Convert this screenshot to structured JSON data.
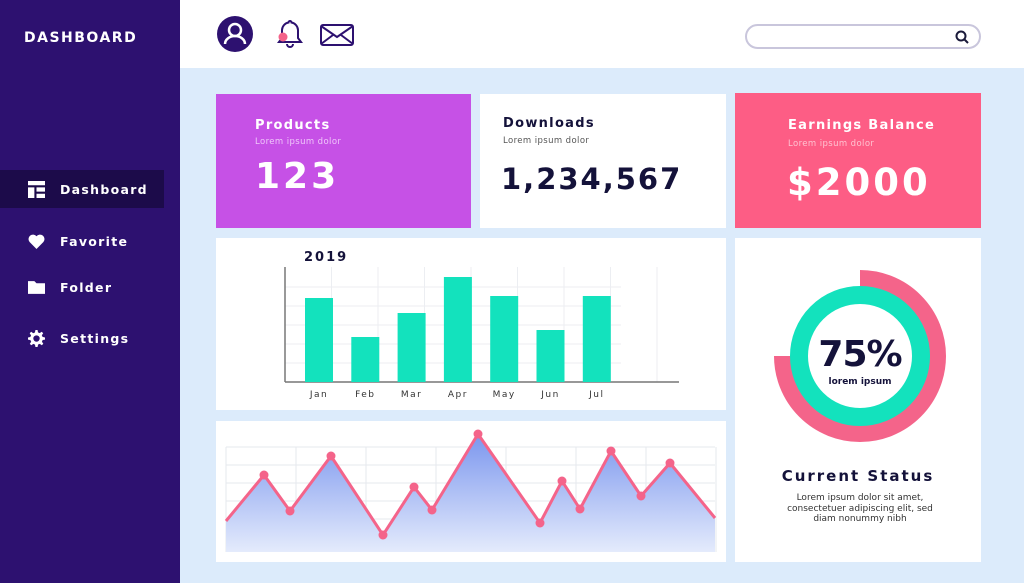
{
  "sidebar": {
    "title": "DASHBOARD",
    "items": [
      {
        "label": "Dashboard",
        "icon": "grid-icon",
        "active": true
      },
      {
        "label": "Favorite",
        "icon": "heart-icon"
      },
      {
        "label": "Folder",
        "icon": "folder-icon"
      },
      {
        "label": "Settings",
        "icon": "gear-icon"
      }
    ]
  },
  "topbar": {
    "icons": [
      "user-avatar-icon",
      "bell-icon",
      "mail-icon",
      "search-icon"
    ],
    "search_placeholder": ""
  },
  "cards": {
    "products": {
      "title": "Products",
      "subtitle": "Lorem ipsum dolor",
      "value": "123",
      "color": "#c651e6"
    },
    "downloads": {
      "title": "Downloads",
      "subtitle": "Lorem ipsum dolor",
      "value": "1,234,567"
    },
    "earnings": {
      "title": "Earnings Balance",
      "subtitle": "Lorem ipsum dolor",
      "value": "$2000",
      "color": "#fd5d85"
    }
  },
  "status": {
    "percent": "75%",
    "percent_value": 75,
    "caption": "lorem ipsum",
    "title": "Current Status",
    "text": "Lorem ipsum dolor sit amet, consectetuer adipiscing elit, sed diam nonummy nibh"
  },
  "colors": {
    "sidebar": "#2d1170",
    "background": "#dcebfb",
    "teal": "#13e2bd",
    "pink": "#f4648a",
    "area": "#7b96ee"
  },
  "chart_data": [
    {
      "type": "bar",
      "title": "2019",
      "categories": [
        "Jan",
        "Feb",
        "Mar",
        "Apr",
        "May",
        "Jun",
        "Jul"
      ],
      "values": [
        84,
        45,
        69,
        105,
        86,
        52,
        86
      ],
      "grid": true
    },
    {
      "type": "area",
      "values": [
        31,
        77,
        41,
        96,
        17,
        65,
        42,
        118,
        29,
        71,
        43,
        101,
        56,
        89,
        34
      ],
      "grid": true
    }
  ]
}
